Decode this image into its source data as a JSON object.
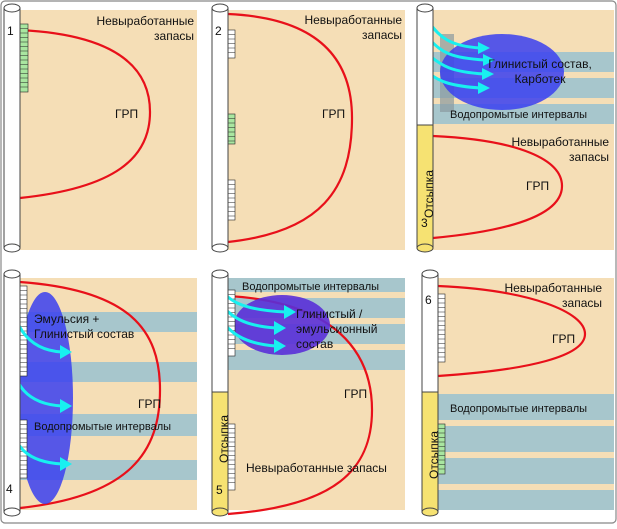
{
  "panels": [
    {
      "number": "1",
      "reserves": [
        "Невыработанные",
        "запасы"
      ],
      "frac": "ГРП"
    },
    {
      "number": "2",
      "reserves": [
        "Невыработанные",
        "запасы"
      ],
      "frac": "ГРП"
    },
    {
      "number": "3",
      "zone": [
        "Глинистый состав,",
        "Карботек"
      ],
      "water": "Водопромытые интервалы",
      "reserves": [
        "Невыработанные",
        "запасы"
      ],
      "frac": "ГРП",
      "packer": "Отсыпка"
    },
    {
      "number": "4",
      "zone": [
        "Эмульсия +",
        "Глинистый состав"
      ],
      "water": "Водопромытые интервалы",
      "frac": "ГРП"
    },
    {
      "number": "5",
      "water": "Водопромытые интервалы",
      "zone": [
        "Глинистый /",
        "эмульсионный",
        "состав"
      ],
      "frac": "ГРП",
      "packer": "Отсыпка",
      "reserves": [
        "Невыработанные запасы"
      ]
    },
    {
      "number": "6",
      "reserves": [
        "Невыработанные",
        "запасы"
      ],
      "frac": "ГРП",
      "water": "Водопромытые интервалы",
      "packer": "Отсыпка"
    }
  ],
  "colors": {
    "formation": "#f5deb6",
    "water_band": "#a7c6cc",
    "frac": "#e8101a",
    "packer": "#f6e272",
    "zone": "#3a40f0",
    "zone5": "#5a2fd8",
    "arrow": "#18f0f0",
    "perforation": "#a9e6a0"
  }
}
